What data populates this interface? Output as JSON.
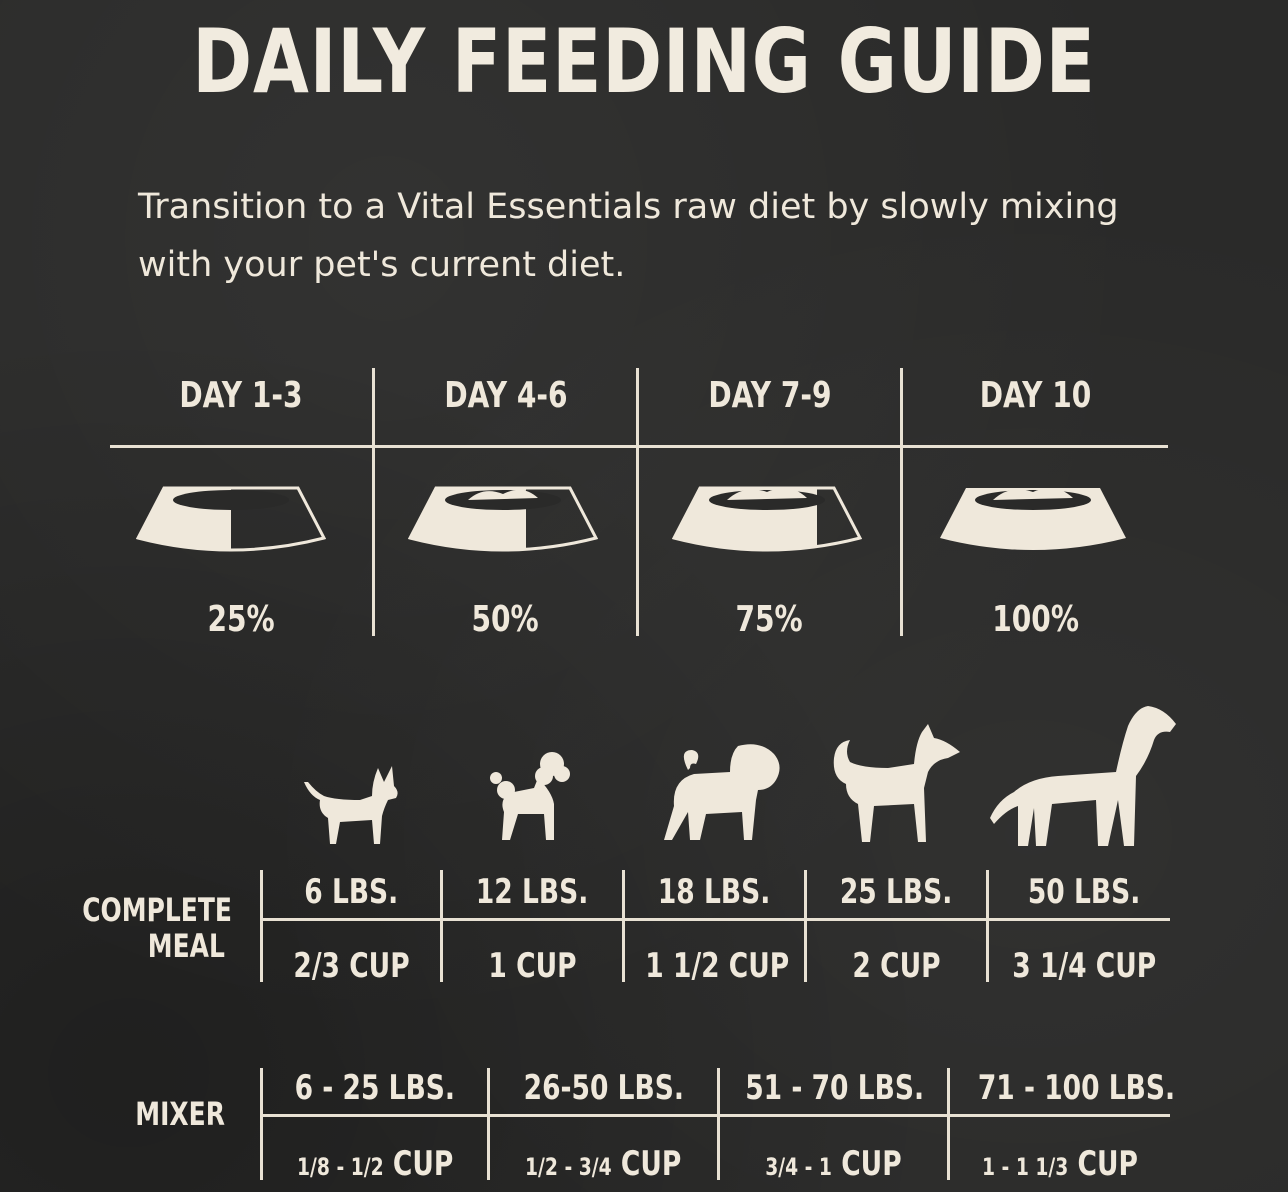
{
  "title": "DAILY FEEDING GUIDE",
  "subtitle": "Transition to a Vital Essentials raw diet by slowly mixing with your pet's current diet.",
  "transition": [
    {
      "day": "DAY 1-3",
      "percent": "25%",
      "fill": 0.25
    },
    {
      "day": "DAY 4-6",
      "percent": "50%",
      "fill": 0.5
    },
    {
      "day": "DAY 7-9",
      "percent": "75%",
      "fill": 0.75
    },
    {
      "day": "DAY 10",
      "percent": "100%",
      "fill": 1.0
    }
  ],
  "complete_meal": {
    "label_line1": "COMPLETE",
    "label_line2": "MEAL",
    "columns": [
      {
        "weight": "6 LBS.",
        "amount": "2/3 CUP",
        "dog": "chihuahua-icon"
      },
      {
        "weight": "12 LBS.",
        "amount": "1 CUP",
        "dog": "poodle-icon"
      },
      {
        "weight": "18 LBS.",
        "amount": "1 1/2 CUP",
        "dog": "pug-icon"
      },
      {
        "weight": "25 LBS.",
        "amount": "2 CUP",
        "dog": "shiba-icon"
      },
      {
        "weight": "50 LBS.",
        "amount": "3 1/4 CUP",
        "dog": "retriever-icon"
      }
    ]
  },
  "mixer": {
    "label": "MIXER",
    "columns": [
      {
        "weight": "6 - 25 LBS.",
        "amount_small": "1/8 - 1/2",
        "unit": "CUP"
      },
      {
        "weight": "26-50 LBS.",
        "amount_small": "1/2 - 3/4",
        "unit": "CUP"
      },
      {
        "weight": "51 - 70 LBS.",
        "amount_small": "3/4 - 1",
        "unit": "CUP"
      },
      {
        "weight": "71 - 100 LBS.",
        "amount_small": "1 - 1 1/3",
        "unit": "CUP"
      }
    ]
  },
  "colors": {
    "background": "#2a2a29",
    "ink": "#efe8db"
  }
}
